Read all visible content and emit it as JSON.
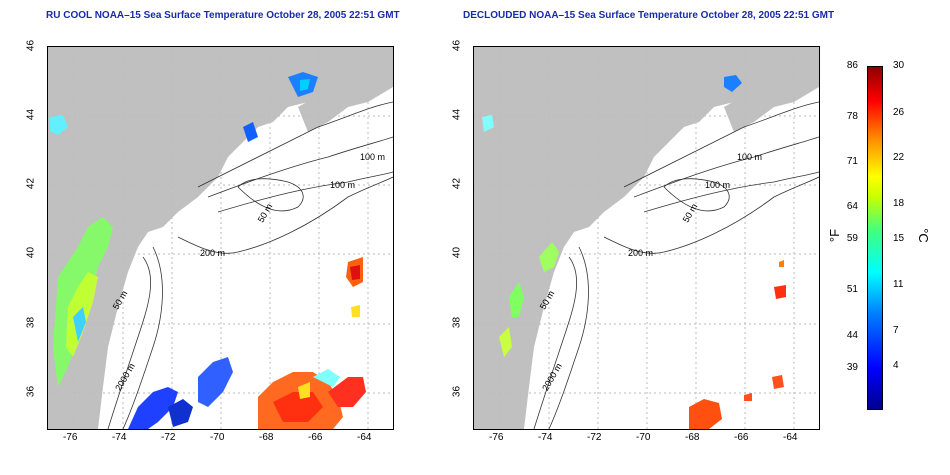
{
  "titles": {
    "left": "RU COOL NOAA–15 Sea Surface Temperature October 28, 2005 22:51 GMT",
    "right": "DECLOUDED NOAA–15 Sea Surface Temperature October 28, 2005 22:51 GMT"
  },
  "axes": {
    "lon_ticks": [
      "-76",
      "-74",
      "-72",
      "-70",
      "-68",
      "-66",
      "-64"
    ],
    "lat_ticks": [
      "46",
      "44",
      "42",
      "40",
      "38",
      "36"
    ]
  },
  "contours": {
    "left": [
      "100 m",
      "100 m",
      "50 m",
      "200 m",
      "50 m",
      "2000 m"
    ],
    "right": [
      "100 m",
      "100 m",
      "50 m",
      "200 m",
      "50 m",
      "2000 m"
    ]
  },
  "colorbar": {
    "fahrenheit_unit": "°F",
    "celsius_unit": "°C",
    "fahrenheit_ticks": [
      "86",
      "78",
      "71",
      "64",
      "59",
      "51",
      "44",
      "39"
    ],
    "celsius_ticks": [
      "30",
      "26",
      "22",
      "18",
      "15",
      "11",
      "7",
      "4"
    ]
  },
  "colors": {
    "title": "#1a2aa8",
    "land": "#c0c0c0",
    "grid": "#bbbbbb"
  }
}
